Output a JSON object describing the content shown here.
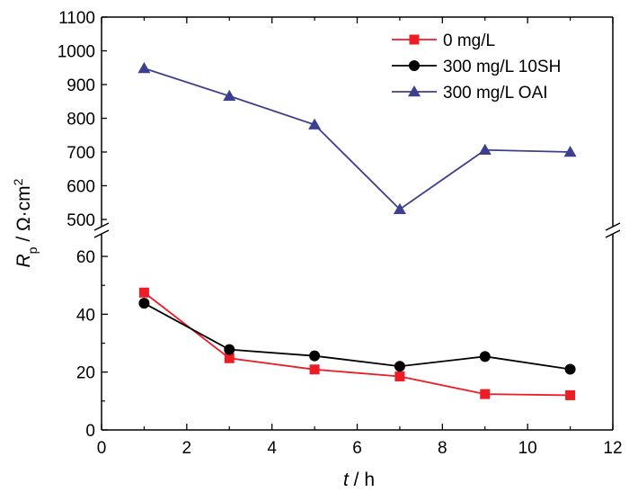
{
  "chart_data": {
    "type": "line",
    "x": [
      1,
      3,
      5,
      7,
      9,
      11
    ],
    "xlabel_italic": "t",
    "xlabel_unit": " / h",
    "ylabel_italic": "R",
    "ylabel_sub": "p",
    "ylabel_unit": " / Ω·cm",
    "ylabel_sup": "2",
    "xlim": [
      0,
      12
    ],
    "x_ticks": [
      "0",
      "2",
      "4",
      "6",
      "8",
      "10",
      "12"
    ],
    "upper_panel": {
      "ylim": [
        500,
        1100
      ],
      "y_ticks": [
        "500",
        "600",
        "700",
        "800",
        "900",
        "1000",
        "1100"
      ]
    },
    "lower_panel": {
      "ylim": [
        0,
        65
      ],
      "y_ticks": [
        "0",
        "20",
        "40",
        "60"
      ]
    },
    "axis_break": true,
    "legend_position": "top-right",
    "series": [
      {
        "name": "0 mg/L",
        "color": "#ee1c24",
        "marker": "square",
        "panel": "lower",
        "values": [
          47.5,
          24.8,
          20.9,
          18.5,
          12.4,
          12.0
        ]
      },
      {
        "name": "300 mg/L 10SH",
        "color": "#000000",
        "marker": "circle",
        "panel": "lower",
        "values": [
          43.8,
          27.8,
          25.6,
          22.0,
          25.4,
          21.0
        ]
      },
      {
        "name": "300 mg/L OAI",
        "color": "#3d3f8f",
        "marker": "triangle",
        "panel": "upper",
        "values": [
          948,
          866,
          781,
          530,
          706,
          700
        ]
      }
    ]
  }
}
